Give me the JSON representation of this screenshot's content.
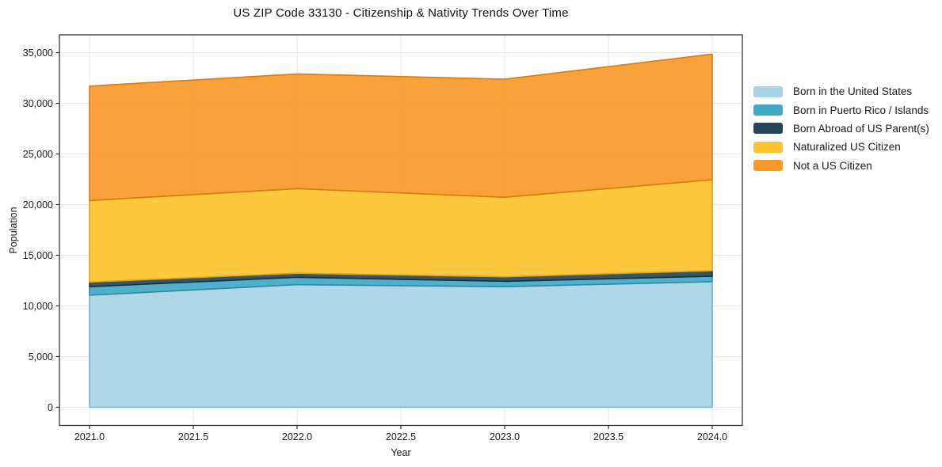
{
  "chart_data": {
    "type": "area",
    "stacked": true,
    "title": "US ZIP Code 33130 - Citizenship & Nativity Trends Over Time",
    "xlabel": "Year",
    "ylabel": "Population",
    "x": [
      2021,
      2022,
      2023,
      2024
    ],
    "series": [
      {
        "name": "Born in the United States",
        "color": "#A9D4E6",
        "edge_color": "#79AECB",
        "values": [
          11050,
          12100,
          11900,
          12400
        ]
      },
      {
        "name": "Born in Puerto Rico / Islands",
        "color": "#41A9C6",
        "edge_color": "#2E8AA5",
        "values": [
          850,
          725,
          525,
          525
        ]
      },
      {
        "name": "Born Abroad of US Parent(s)",
        "color": "#254659",
        "edge_color": "#16303F",
        "values": [
          450,
          400,
          450,
          550
        ]
      },
      {
        "name": "Naturalized US Citizen",
        "color": "#FDC32E",
        "edge_color": "#DCA414",
        "values": [
          8050,
          8350,
          7850,
          8975
        ]
      },
      {
        "name": "Not a US Citizen",
        "color": "#F89929",
        "edge_color": "#D87C10",
        "values": [
          11300,
          11325,
          11650,
          12400
        ]
      }
    ],
    "stack_totals": [
      31700,
      32900,
      32375,
      34850
    ],
    "xticks": {
      "values": [
        2021.0,
        2021.5,
        2022.0,
        2022.5,
        2023.0,
        2023.5,
        2024.0
      ],
      "labels": [
        "2021.0",
        "2021.5",
        "2022.0",
        "2022.5",
        "2023.0",
        "2023.5",
        "2024.0"
      ]
    },
    "yticks": {
      "values": [
        0,
        5000,
        10000,
        15000,
        20000,
        25000,
        30000,
        35000
      ],
      "labels": [
        "0",
        "5,000",
        "10,000",
        "15,000",
        "20,000",
        "25,000",
        "30,000",
        "35,000"
      ]
    },
    "xlim": [
      2020.855,
      2024.145
    ],
    "ylim": [
      -1800,
      36760
    ],
    "grid": true,
    "legend_position": "right",
    "style": {
      "background": "#ffffff",
      "grid_color": "#e6e6e6",
      "spine_color": "#333333",
      "tick_color": "#333333",
      "text_color": "#1a1a1a",
      "fill_opacity": 0.92
    }
  }
}
